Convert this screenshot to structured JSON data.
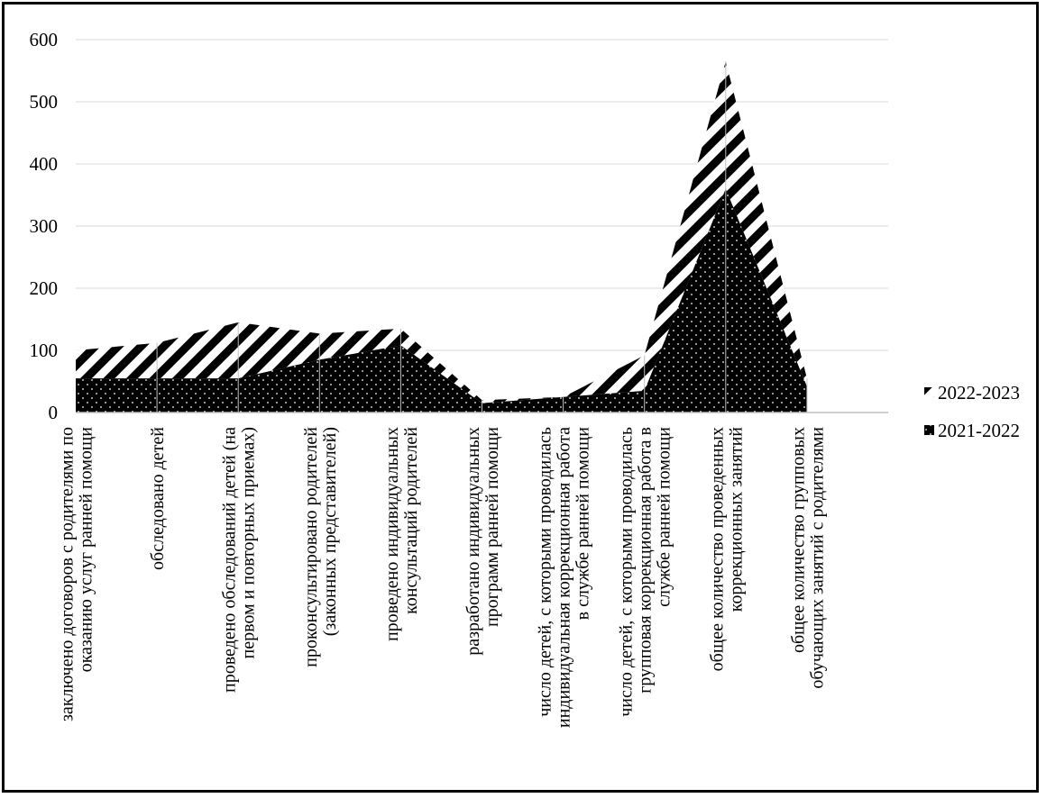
{
  "chart_data": {
    "type": "area",
    "stacked": true,
    "categories": [
      [
        "заключено договоров с родителями по",
        "оказанию услуг ранней помощи"
      ],
      [
        "обследовано детей"
      ],
      [
        "проведено обследований детей (на",
        "первом и повторных приемах)"
      ],
      [
        "проконсультировано родителей",
        "(законных представителей)"
      ],
      [
        "проведено индивидуальных",
        "консультаций родителей"
      ],
      [
        "разработано индивидуальных",
        "программ ранней помощи"
      ],
      [
        "число детей, с которыми проводилась",
        "индивидуальная коррекционная работа",
        "в службе ранней помощи"
      ],
      [
        "число детей, с которыми проводилась",
        "групповая коррекционная работа в",
        "службе ранней помощи"
      ],
      [
        "общее количество проведенных",
        "коррекционных занятий"
      ],
      [
        "общее количество групповых",
        "обучающих занятий с родителями"
      ]
    ],
    "series": [
      {
        "name": "2021-2022",
        "values": [
          55,
          55,
          55,
          85,
          108,
          15,
          25,
          35,
          360,
          42
        ],
        "fill": "dots"
      },
      {
        "name": "2022-2023",
        "values": [
          45,
          57,
          90,
          42,
          27,
          5,
          0,
          57,
          205,
          13
        ],
        "fill": "stripes"
      }
    ],
    "ylim": [
      0,
      600
    ],
    "yticks": [
      "0",
      "100",
      "200",
      "300",
      "400",
      "500",
      "600"
    ],
    "grid": true,
    "legend_position": "right",
    "colors": {
      "fill": "#000000",
      "grid": "#d9d9d9",
      "pattern": "#ffffff"
    }
  }
}
